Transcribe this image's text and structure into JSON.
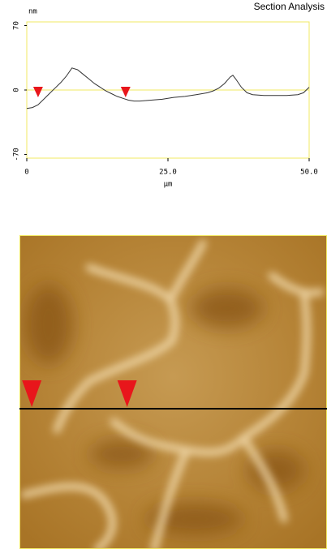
{
  "chart_data": {
    "type": "line",
    "title": "Section Analysis",
    "y_label": "nm",
    "x_label": "µm",
    "x": [
      0,
      1,
      2,
      3,
      4,
      5,
      6,
      7,
      8,
      9,
      10,
      11,
      12,
      13,
      14,
      15,
      16,
      17,
      18,
      19,
      20,
      22,
      24,
      26,
      28,
      30,
      32,
      33,
      34,
      35,
      36,
      36.5,
      37,
      38,
      39,
      40,
      42,
      44,
      46,
      48,
      49,
      50
    ],
    "values": [
      -20,
      -19,
      -16,
      -10,
      -4,
      2,
      8,
      15,
      24,
      22,
      17,
      12,
      7,
      3,
      -1,
      -4,
      -7,
      -9,
      -11,
      -12,
      -12,
      -11,
      -10,
      -8,
      -7,
      -5,
      -3,
      -1,
      2,
      7,
      14,
      16,
      12,
      3,
      -3,
      -5,
      -6,
      -6,
      -6,
      -5,
      -3,
      3
    ],
    "color": "#333333",
    "frame_color": "#f0e860",
    "xlim": [
      0,
      50
    ],
    "xticks": [
      0,
      {
        "value": 25,
        "label": "25.0"
      },
      {
        "value": 50,
        "label": "50.0"
      }
    ],
    "ylim": [
      -74,
      74
    ],
    "yticks": [
      -70,
      0,
      70
    ],
    "cursor_x": [
      2,
      17.5
    ],
    "cursor_color": "#e8161b"
  }
}
